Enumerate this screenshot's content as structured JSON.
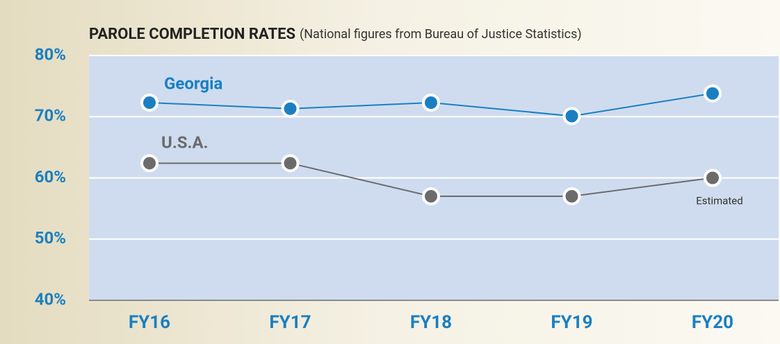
{
  "chart_data": {
    "type": "line",
    "title": "PAROLE COMPLETION RATES",
    "subtitle": "(National figures from Bureau of Justice Statistics)",
    "categories": [
      "FY16",
      "FY17",
      "FY18",
      "FY19",
      "FY20"
    ],
    "series": [
      {
        "name": "Georgia",
        "color": "#1a7fc1",
        "values": [
          72.3,
          71.3,
          72.3,
          70.1,
          73.8
        ]
      },
      {
        "name": "U.S.A.",
        "color": "#6b6b6b",
        "values": [
          62.4,
          62.4,
          57.0,
          57.0,
          60.0
        ]
      }
    ],
    "annotations": [
      "Estimated"
    ],
    "ylim": [
      40,
      80
    ],
    "yticks": [
      {
        "value": 40,
        "label": "40%"
      },
      {
        "value": 50,
        "label": "50%"
      },
      {
        "value": 60,
        "label": "60%"
      },
      {
        "value": 70,
        "label": "70%"
      },
      {
        "value": 80,
        "label": "80%"
      }
    ],
    "grid": true
  }
}
